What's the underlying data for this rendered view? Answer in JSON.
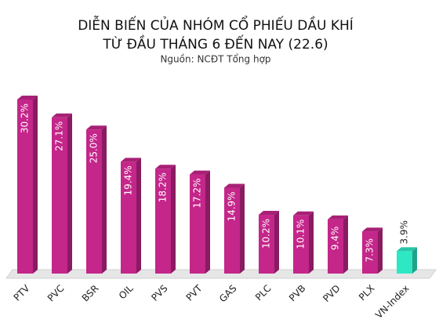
{
  "chart_data": {
    "type": "bar",
    "title": [
      "DIỄN BIẾN CỦA NHÓM CỔ PHIẾU DẦU KHÍ",
      "TỪ ĐẦU THÁNG 6 ĐẾN NAY (22.6)"
    ],
    "subtitle": "Nguồn: NCĐT Tổng hợp",
    "categories": [
      "PTV",
      "PVC",
      "BSR",
      "OIL",
      "PVS",
      "PVT",
      "GAS",
      "PLC",
      "PVB",
      "PVD",
      "PLX",
      "VN-Index"
    ],
    "values": [
      30.2,
      27.1,
      25.0,
      19.4,
      18.2,
      17.2,
      14.9,
      10.2,
      10.1,
      9.4,
      7.3,
      3.9
    ],
    "value_labels": [
      "30.2%",
      "27.1%",
      "25.0%",
      "19.4%",
      "18.2%",
      "17.2%",
      "14.9%",
      "10.2%",
      "10.1%",
      "9.4%",
      "7.3%",
      "3.9%"
    ],
    "colors": [
      "#c4268a",
      "#c4268a",
      "#c4268a",
      "#c4268a",
      "#c4268a",
      "#c4268a",
      "#c4268a",
      "#c4268a",
      "#c4268a",
      "#c4268a",
      "#c4268a",
      "#2ee8c4"
    ]
  }
}
